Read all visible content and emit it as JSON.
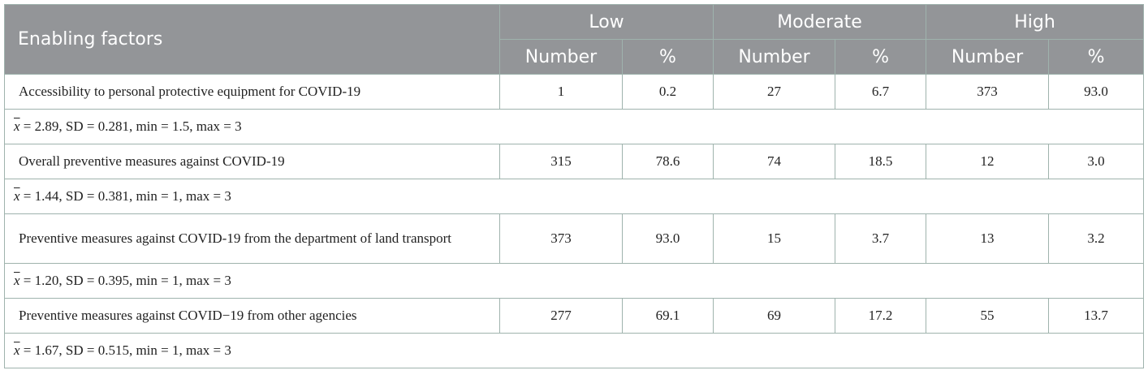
{
  "table": {
    "header": {
      "factor_label": "Enabling factors",
      "groups": [
        "Low",
        "Moderate",
        "High"
      ],
      "sub": [
        "Number",
        "%",
        "Number",
        "%",
        "Number",
        "%"
      ]
    },
    "rows": [
      {
        "factor": "Accessibility to personal protective equipment for COVID-19",
        "values": [
          "1",
          "0.2",
          "27",
          "6.7",
          "373",
          "93.0"
        ],
        "stats_symbol": "x",
        "stats": " = 2.89, SD = 0.281, min = 1.5, max = 3"
      },
      {
        "factor": "Overall preventive measures against COVID-19",
        "values": [
          "315",
          "78.6",
          "74",
          "18.5",
          "12",
          "3.0"
        ],
        "stats_symbol": "x",
        "stats": " = 1.44, SD = 0.381, min = 1, max = 3"
      },
      {
        "factor": "Preventive measures against COVID-19 from the department of land transport",
        "values": [
          "373",
          "93.0",
          "15",
          "3.7",
          "13",
          "3.2"
        ],
        "stats_symbol": "x",
        "stats": " = 1.20, SD = 0.395, min = 1, max = 3"
      },
      {
        "factor": "Preventive measures against COVID−19 from other agencies",
        "values": [
          "277",
          "69.1",
          "69",
          "17.2",
          "55",
          "13.7"
        ],
        "stats_symbol": "x",
        "stats": " = 1.67, SD = 0.515, min = 1, max = 3"
      }
    ]
  }
}
